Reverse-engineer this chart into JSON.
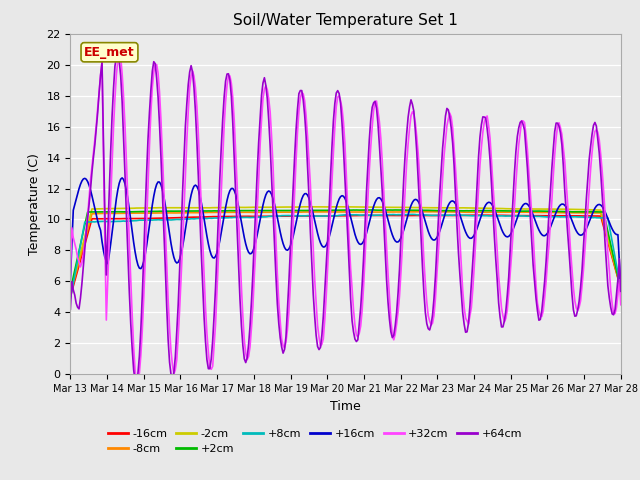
{
  "title": "Soil/Water Temperature Set 1",
  "xlabel": "Time",
  "ylabel": "Temperature (C)",
  "ylim": [
    0,
    22
  ],
  "yticks": [
    0,
    2,
    4,
    6,
    8,
    10,
    12,
    14,
    16,
    18,
    20,
    22
  ],
  "x_tick_labels": [
    "Mar 13",
    "Mar 14",
    "Mar 15",
    "Mar 16",
    "Mar 17",
    "Mar 18",
    "Mar 19",
    "Mar 20",
    "Mar 21",
    "Mar 22",
    "Mar 23",
    "Mar 24",
    "Mar 25",
    "Mar 26",
    "Mar 27",
    "Mar 28"
  ],
  "series_order": [
    "-16cm",
    "-8cm",
    "-2cm",
    "+2cm",
    "+8cm",
    "+16cm",
    "+32cm",
    "+64cm"
  ],
  "series": {
    "-16cm": {
      "color": "#ff0000",
      "lw": 1.2
    },
    "-8cm": {
      "color": "#ff8800",
      "lw": 1.2
    },
    "-2cm": {
      "color": "#cccc00",
      "lw": 1.2
    },
    "+2cm": {
      "color": "#00bb00",
      "lw": 1.2
    },
    "+8cm": {
      "color": "#00bbbb",
      "lw": 1.2
    },
    "+16cm": {
      "color": "#0000cc",
      "lw": 1.2
    },
    "+32cm": {
      "color": "#ff44ff",
      "lw": 1.2
    },
    "+64cm": {
      "color": "#9900cc",
      "lw": 1.2
    }
  },
  "annotation_text": "EE_met",
  "annotation_color": "#cc0000",
  "annotation_bg": "#ffffcc",
  "annotation_edge": "#888800",
  "background_color": "#e8e8e8",
  "plot_bg": "#ebebeb",
  "grid_color": "#ffffff",
  "legend_row1": [
    "-16cm",
    "-8cm",
    "-2cm",
    "+2cm",
    "+8cm",
    "+16cm"
  ],
  "legend_row2": [
    "+32cm",
    "+64cm"
  ]
}
